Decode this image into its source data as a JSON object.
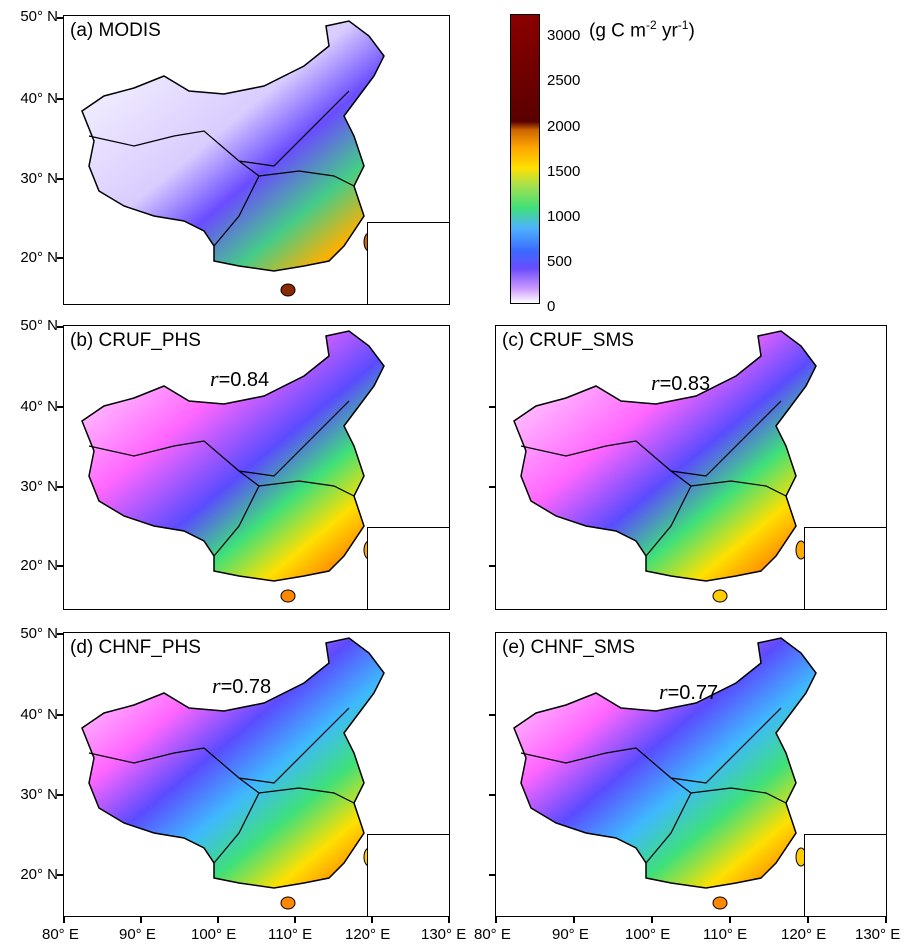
{
  "panels": {
    "a": {
      "label": "(a) MODIS",
      "r": ""
    },
    "b": {
      "label": "(b) CRUF_PHS",
      "r_prefix": "r",
      "r": "=0.84"
    },
    "c": {
      "label": "(c) CRUF_SMS",
      "r_prefix": "r",
      "r": "=0.83"
    },
    "d": {
      "label": "(d) CHNF_PHS",
      "r_prefix": "r",
      "r": "=0.78"
    },
    "e": {
      "label": "(e) CHNF_SMS",
      "r_prefix": "r",
      "r": "=0.77"
    }
  },
  "lat_labels": [
    "50° N",
    "40° N",
    "30° N",
    "20° N"
  ],
  "lon_labels": [
    "80° E",
    "90° E",
    "100° E",
    "110° E",
    "120° E",
    "130° E"
  ],
  "colorbar": {
    "unit_main": "(g C m",
    "unit_sup1": "-2",
    "unit_mid": " yr",
    "unit_sup2": "-1",
    "unit_end": ")",
    "ticks": [
      "3000",
      "2500",
      "2000",
      "1500",
      "1000",
      "500",
      "0"
    ]
  },
  "colors": {
    "low": "#ffffff",
    "purple": "#cc66ff",
    "blue": "#5a4cff",
    "cyan": "#3fb8ff",
    "green": "#3ee07a",
    "yellow": "#ffe000",
    "orange": "#ff9900",
    "brown": "#8b4500",
    "darkred": "#7a0000"
  }
}
